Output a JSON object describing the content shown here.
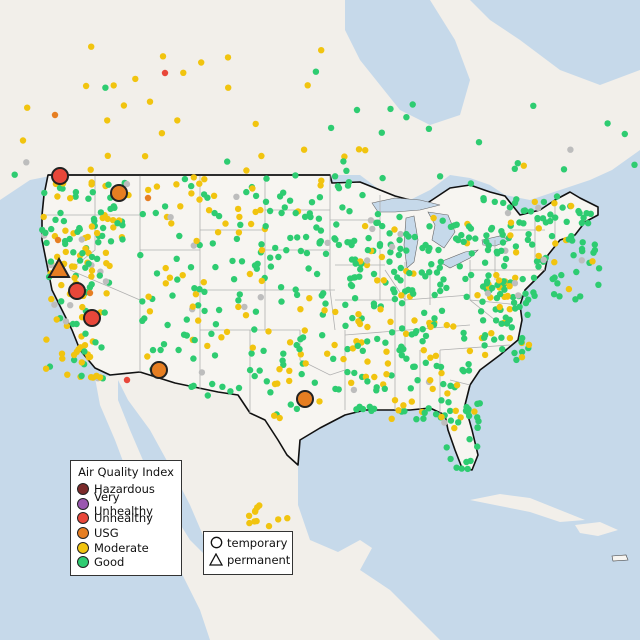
{
  "legend": {
    "title": "Air Quality Index",
    "categories": [
      {
        "label": "Hazardous",
        "color": "#7b2a2a"
      },
      {
        "label": "Very Unhealthy",
        "color": "#9a57b0"
      },
      {
        "label": "Unhealthy",
        "color": "#e8473a"
      },
      {
        "label": "USG",
        "color": "#e67e22"
      },
      {
        "label": "Moderate",
        "color": "#f1c40f"
      },
      {
        "label": "Good",
        "color": "#2ecc71"
      }
    ]
  },
  "site_legend": {
    "temporary": "temporary",
    "permanent": "permanent"
  },
  "colors": {
    "water": "#c6d9ea",
    "land": "#f2efea",
    "usa": "#f7f5f1",
    "border": "#111111",
    "state_lines": "#b0b0b0",
    "no_data": "#bdbdbd"
  },
  "map": {
    "region": "contiguous United States with surrounding Canada and Mexico",
    "highlighted_sites": [
      {
        "category": "Unhealthy",
        "type": "temporary"
      },
      {
        "category": "USG",
        "type": "temporary"
      },
      {
        "category": "USG",
        "type": "permanent"
      },
      {
        "category": "Unhealthy",
        "type": "temporary"
      },
      {
        "category": "Unhealthy",
        "type": "temporary"
      },
      {
        "category": "USG",
        "type": "temporary"
      },
      {
        "category": "USG",
        "type": "temporary"
      }
    ]
  }
}
